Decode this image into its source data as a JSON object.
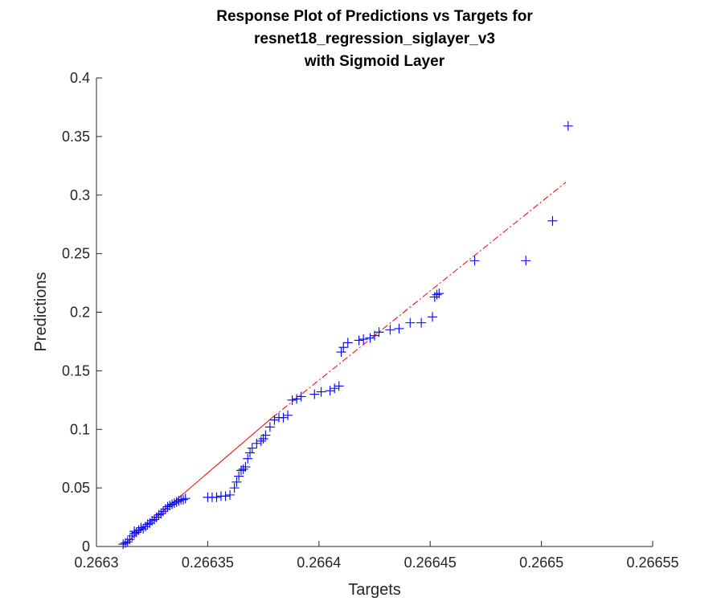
{
  "chart_data": {
    "type": "scatter",
    "title": [
      "Response Plot of Predictions vs Targets for",
      "resnet18_regression_siglayer_v3",
      "with Sigmoid Layer"
    ],
    "xlabel": "Targets",
    "ylabel": "Predictions",
    "xlim": [
      0.2663,
      0.26655
    ],
    "ylim": [
      0,
      0.4
    ],
    "xticks": [
      0.2663,
      0.26635,
      0.2664,
      0.26645,
      0.2665,
      0.26655
    ],
    "xtick_labels": [
      "0.2663",
      "0.26635",
      "0.2664",
      "0.26645",
      "0.2665",
      "0.26655"
    ],
    "yticks": [
      0,
      0.05,
      0.1,
      0.15,
      0.2,
      0.25,
      0.3,
      0.35,
      0.4
    ],
    "ytick_labels": [
      "0",
      "0.05",
      "0.1",
      "0.15",
      "0.2",
      "0.25",
      "0.3",
      "0.35",
      "0.4"
    ],
    "grid": false,
    "marker_color": "#0000ff",
    "fit_color": "#ff0000",
    "fit_line": {
      "solid": [
        [
          0.266312,
          0.001
        ],
        [
          0.266379,
          0.11
        ]
      ],
      "dashdot": [
        [
          0.266379,
          0.11
        ],
        [
          0.266511,
          0.311
        ]
      ]
    },
    "points": [
      [
        0.266312,
        0.002
      ],
      [
        0.266313,
        0.003
      ],
      [
        0.266314,
        0.004
      ],
      [
        0.266315,
        0.006
      ],
      [
        0.266316,
        0.009
      ],
      [
        0.266317,
        0.011
      ],
      [
        0.266317,
        0.013
      ],
      [
        0.266318,
        0.012
      ],
      [
        0.266319,
        0.014
      ],
      [
        0.26632,
        0.016
      ],
      [
        0.266321,
        0.015
      ],
      [
        0.266322,
        0.017
      ],
      [
        0.266323,
        0.019
      ],
      [
        0.266324,
        0.02
      ],
      [
        0.266325,
        0.022
      ],
      [
        0.266326,
        0.023
      ],
      [
        0.266327,
        0.025
      ],
      [
        0.266328,
        0.027
      ],
      [
        0.266329,
        0.028
      ],
      [
        0.26633,
        0.03
      ],
      [
        0.266331,
        0.032
      ],
      [
        0.266332,
        0.034
      ],
      [
        0.266333,
        0.035
      ],
      [
        0.266334,
        0.036
      ],
      [
        0.266335,
        0.037
      ],
      [
        0.266336,
        0.038
      ],
      [
        0.266337,
        0.039
      ],
      [
        0.266338,
        0.04
      ],
      [
        0.266339,
        0.04
      ],
      [
        0.26634,
        0.041
      ],
      [
        0.26635,
        0.042
      ],
      [
        0.266352,
        0.042
      ],
      [
        0.266354,
        0.042
      ],
      [
        0.266356,
        0.043
      ],
      [
        0.266358,
        0.043
      ],
      [
        0.26636,
        0.044
      ],
      [
        0.266362,
        0.05
      ],
      [
        0.266363,
        0.055
      ],
      [
        0.266364,
        0.06
      ],
      [
        0.266365,
        0.065
      ],
      [
        0.266366,
        0.066
      ],
      [
        0.266367,
        0.068
      ],
      [
        0.266368,
        0.075
      ],
      [
        0.266369,
        0.08
      ],
      [
        0.26637,
        0.084
      ],
      [
        0.266372,
        0.088
      ],
      [
        0.266374,
        0.09
      ],
      [
        0.266375,
        0.092
      ],
      [
        0.266376,
        0.095
      ],
      [
        0.266378,
        0.102
      ],
      [
        0.26638,
        0.108
      ],
      [
        0.266382,
        0.11
      ],
      [
        0.266384,
        0.11
      ],
      [
        0.266386,
        0.112
      ],
      [
        0.266388,
        0.125
      ],
      [
        0.26639,
        0.126
      ],
      [
        0.266392,
        0.128
      ],
      [
        0.266398,
        0.13
      ],
      [
        0.266401,
        0.132
      ],
      [
        0.266405,
        0.133
      ],
      [
        0.266407,
        0.135
      ],
      [
        0.266409,
        0.137
      ],
      [
        0.26641,
        0.166
      ],
      [
        0.266411,
        0.17
      ],
      [
        0.266413,
        0.174
      ],
      [
        0.266418,
        0.176
      ],
      [
        0.26642,
        0.177
      ],
      [
        0.266423,
        0.178
      ],
      [
        0.266425,
        0.18
      ],
      [
        0.266427,
        0.183
      ],
      [
        0.266432,
        0.185
      ],
      [
        0.266436,
        0.186
      ],
      [
        0.266441,
        0.191
      ],
      [
        0.266446,
        0.191
      ],
      [
        0.266451,
        0.196
      ],
      [
        0.266452,
        0.213
      ],
      [
        0.266453,
        0.215
      ],
      [
        0.266454,
        0.216
      ],
      [
        0.26647,
        0.244
      ],
      [
        0.266493,
        0.244
      ],
      [
        0.266505,
        0.278
      ],
      [
        0.266512,
        0.359
      ]
    ]
  }
}
